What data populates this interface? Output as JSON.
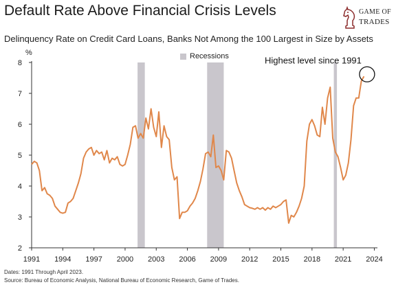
{
  "header": {
    "title": "Default Rate Above Financial Crisis Levels",
    "subtitle": "Delinquency Rate on Credit Card Loans, Banks Not Among the 100 Largest in Size by Assets"
  },
  "logo": {
    "line1": "GAME OF",
    "line2": "TRADES",
    "icon": "chess-knight-icon"
  },
  "footer": {
    "dates": "Dates: 1991 Through April 2023.",
    "source": "Source: Bureau of Economic Analysis, National Bureau of Economic Research, Game of Trades."
  },
  "chart_data": {
    "type": "line",
    "title": "Default Rate Above Financial Crisis Levels",
    "subtitle": "Delinquency Rate on Credit Card Loans, Banks Not Among the 100 Largest in Size by Assets",
    "ylabel": "%",
    "xlabel": "",
    "xlim": [
      1991,
      2024.3
    ],
    "ylim": [
      2,
      8
    ],
    "x_ticks": [
      1991,
      1994,
      1997,
      2000,
      2003,
      2006,
      2009,
      2012,
      2015,
      2018,
      2021,
      2024
    ],
    "y_ticks": [
      2,
      3,
      4,
      5,
      6,
      7,
      8
    ],
    "grid": false,
    "legend": {
      "position": "top-center",
      "entries": [
        {
          "label": "Recessions",
          "color": "#c9c6cc"
        }
      ]
    },
    "recessions": [
      {
        "start": 2001.2,
        "end": 2001.9
      },
      {
        "start": 2007.9,
        "end": 2009.5
      },
      {
        "start": 2020.1,
        "end": 2020.4
      }
    ],
    "annotation": {
      "text": "Highest level since 1991",
      "x": 2023.3,
      "y": 7.55,
      "marker": "circle"
    },
    "series": [
      {
        "color": "#e0874a",
        "points": [
          [
            1991.0,
            4.7
          ],
          [
            1991.25,
            4.8
          ],
          [
            1991.5,
            4.75
          ],
          [
            1991.75,
            4.5
          ],
          [
            1992.0,
            3.85
          ],
          [
            1992.25,
            3.95
          ],
          [
            1992.5,
            3.75
          ],
          [
            1992.75,
            3.7
          ],
          [
            1993.0,
            3.6
          ],
          [
            1993.25,
            3.35
          ],
          [
            1993.5,
            3.25
          ],
          [
            1993.75,
            3.15
          ],
          [
            1994.0,
            3.12
          ],
          [
            1994.25,
            3.15
          ],
          [
            1994.5,
            3.45
          ],
          [
            1994.75,
            3.5
          ],
          [
            1995.0,
            3.6
          ],
          [
            1995.25,
            3.85
          ],
          [
            1995.5,
            4.1
          ],
          [
            1995.75,
            4.4
          ],
          [
            1996.0,
            4.9
          ],
          [
            1996.25,
            5.1
          ],
          [
            1996.5,
            5.2
          ],
          [
            1996.75,
            5.25
          ],
          [
            1997.0,
            5.0
          ],
          [
            1997.25,
            5.15
          ],
          [
            1997.5,
            5.05
          ],
          [
            1997.75,
            5.1
          ],
          [
            1998.0,
            4.85
          ],
          [
            1998.25,
            5.15
          ],
          [
            1998.5,
            4.75
          ],
          [
            1998.75,
            4.9
          ],
          [
            1999.0,
            4.85
          ],
          [
            1999.25,
            4.95
          ],
          [
            1999.5,
            4.7
          ],
          [
            1999.75,
            4.65
          ],
          [
            2000.0,
            4.7
          ],
          [
            2000.25,
            5.0
          ],
          [
            2000.5,
            5.35
          ],
          [
            2000.75,
            5.9
          ],
          [
            2001.0,
            5.95
          ],
          [
            2001.25,
            5.55
          ],
          [
            2001.5,
            5.7
          ],
          [
            2001.75,
            5.55
          ],
          [
            2002.0,
            6.2
          ],
          [
            2002.25,
            5.85
          ],
          [
            2002.5,
            6.5
          ],
          [
            2002.75,
            5.9
          ],
          [
            2003.0,
            5.6
          ],
          [
            2003.25,
            6.4
          ],
          [
            2003.5,
            5.25
          ],
          [
            2003.75,
            5.95
          ],
          [
            2004.0,
            5.6
          ],
          [
            2004.25,
            5.5
          ],
          [
            2004.5,
            4.6
          ],
          [
            2004.75,
            4.2
          ],
          [
            2005.0,
            4.3
          ],
          [
            2005.25,
            2.95
          ],
          [
            2005.5,
            3.15
          ],
          [
            2005.75,
            3.15
          ],
          [
            2006.0,
            3.2
          ],
          [
            2006.25,
            3.35
          ],
          [
            2006.5,
            3.45
          ],
          [
            2006.75,
            3.6
          ],
          [
            2007.0,
            3.85
          ],
          [
            2007.25,
            4.15
          ],
          [
            2007.5,
            4.55
          ],
          [
            2007.75,
            5.05
          ],
          [
            2008.0,
            5.1
          ],
          [
            2008.25,
            4.95
          ],
          [
            2008.5,
            5.65
          ],
          [
            2008.75,
            4.6
          ],
          [
            2009.0,
            4.65
          ],
          [
            2009.25,
            4.5
          ],
          [
            2009.5,
            4.2
          ],
          [
            2009.75,
            5.15
          ],
          [
            2010.0,
            5.1
          ],
          [
            2010.25,
            4.9
          ],
          [
            2010.5,
            4.5
          ],
          [
            2010.75,
            4.1
          ],
          [
            2011.0,
            3.85
          ],
          [
            2011.25,
            3.65
          ],
          [
            2011.5,
            3.4
          ],
          [
            2011.75,
            3.35
          ],
          [
            2012.0,
            3.3
          ],
          [
            2012.25,
            3.28
          ],
          [
            2012.5,
            3.25
          ],
          [
            2012.75,
            3.3
          ],
          [
            2013.0,
            3.25
          ],
          [
            2013.25,
            3.3
          ],
          [
            2013.5,
            3.22
          ],
          [
            2013.75,
            3.3
          ],
          [
            2014.0,
            3.25
          ],
          [
            2014.25,
            3.35
          ],
          [
            2014.5,
            3.3
          ],
          [
            2014.75,
            3.35
          ],
          [
            2015.0,
            3.4
          ],
          [
            2015.25,
            3.5
          ],
          [
            2015.5,
            3.55
          ],
          [
            2015.75,
            2.8
          ],
          [
            2016.0,
            3.05
          ],
          [
            2016.25,
            3.0
          ],
          [
            2016.5,
            3.15
          ],
          [
            2016.75,
            3.35
          ],
          [
            2017.0,
            3.6
          ],
          [
            2017.25,
            4.0
          ],
          [
            2017.5,
            5.45
          ],
          [
            2017.75,
            6.0
          ],
          [
            2018.0,
            6.15
          ],
          [
            2018.25,
            5.95
          ],
          [
            2018.5,
            5.65
          ],
          [
            2018.75,
            5.6
          ],
          [
            2019.0,
            6.55
          ],
          [
            2019.25,
            6.0
          ],
          [
            2019.5,
            6.85
          ],
          [
            2019.75,
            7.2
          ],
          [
            2020.0,
            5.55
          ],
          [
            2020.25,
            5.1
          ],
          [
            2020.5,
            4.95
          ],
          [
            2020.75,
            4.6
          ],
          [
            2021.0,
            4.2
          ],
          [
            2021.25,
            4.35
          ],
          [
            2021.5,
            4.75
          ],
          [
            2021.75,
            5.5
          ],
          [
            2022.0,
            6.6
          ],
          [
            2022.25,
            6.85
          ],
          [
            2022.5,
            6.85
          ],
          [
            2022.75,
            7.4
          ],
          [
            2023.0,
            7.55
          ]
        ]
      }
    ]
  }
}
